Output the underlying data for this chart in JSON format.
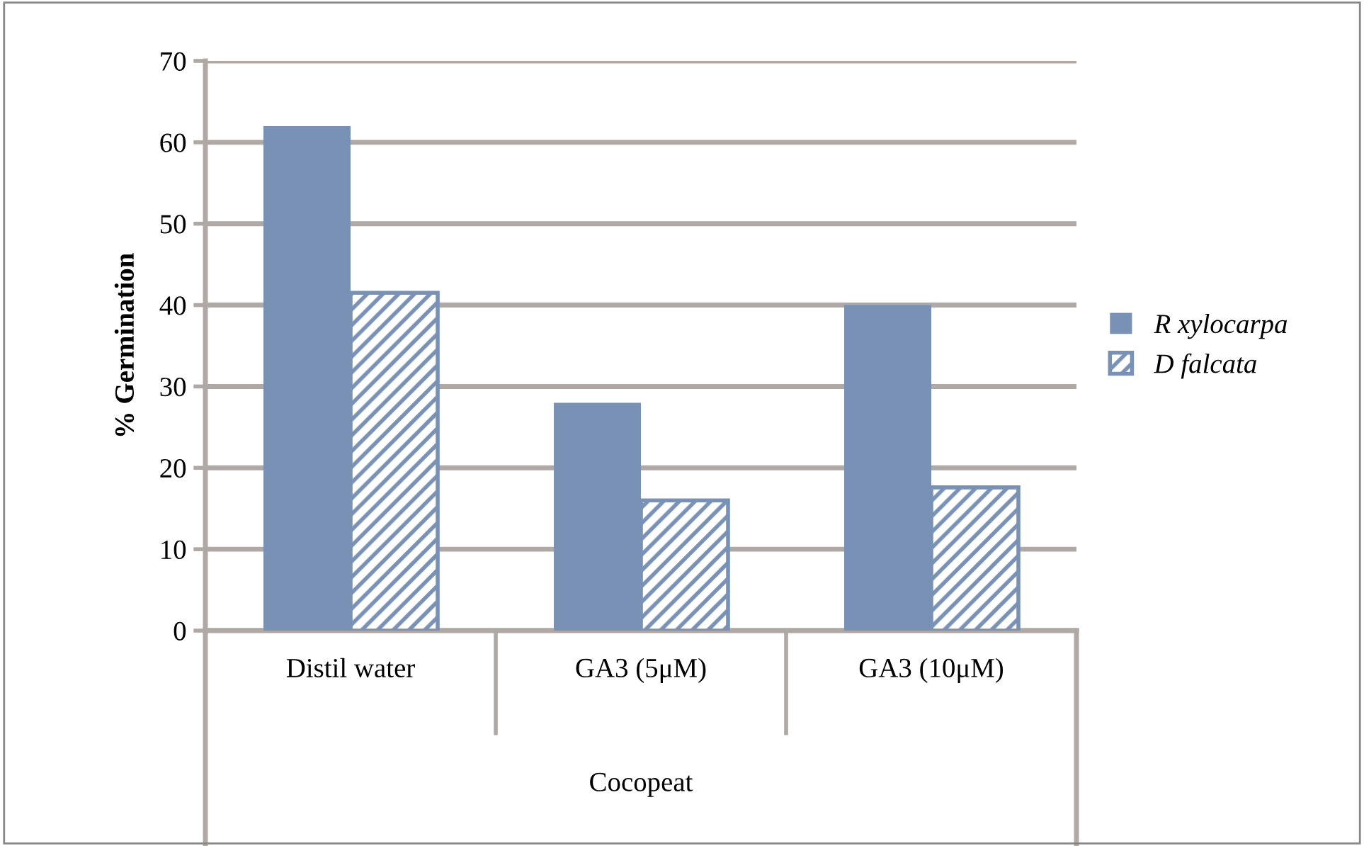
{
  "chart_data": {
    "type": "bar",
    "ylabel": "% Germination",
    "categories": [
      "Distil water",
      "GA3 (5μM)",
      "GA3 (10μM)"
    ],
    "series": [
      {
        "name": "R xylocarpa",
        "color": "#7891b5",
        "values": [
          62,
          28,
          40
        ]
      },
      {
        "name": "D falcata",
        "color": "#7891b5",
        "values": [
          41.5,
          16,
          17.6
        ]
      }
    ],
    "ylim": [
      0,
      70
    ],
    "yticks": [
      0,
      10,
      20,
      30,
      40,
      50,
      60,
      70
    ],
    "grid": "y",
    "legend": "right",
    "annotations": [
      "Cocopeat"
    ]
  }
}
